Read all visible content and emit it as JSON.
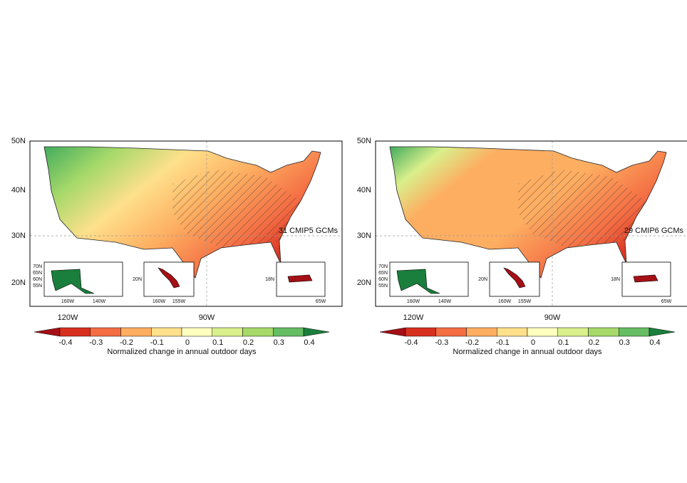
{
  "panels": [
    {
      "annotation": "31 CMIP5 GCMs",
      "lat_labels": [
        "50N",
        "40N",
        "30N",
        "20N"
      ],
      "lon_labels": [
        "120W",
        "90W"
      ],
      "insets": [
        {
          "lat_labels": [
            "70N",
            "65N",
            "60N",
            "55N"
          ],
          "lon_labels": [
            "160W",
            "140W"
          ]
        },
        {
          "lat_labels": [
            "20N"
          ],
          "lon_labels": [
            "160W",
            "155W"
          ]
        },
        {
          "lat_labels": [
            "18N"
          ],
          "lon_labels": [
            "65W"
          ]
        }
      ]
    },
    {
      "annotation": "29 CMIP6 GCMs",
      "lat_labels": [
        "50N",
        "40N",
        "30N",
        "20N"
      ],
      "lon_labels": [
        "120W",
        "90W"
      ],
      "insets": [
        {
          "lat_labels": [
            "70N",
            "65N",
            "60N",
            "55N"
          ],
          "lon_labels": [
            "160W",
            "140W"
          ]
        },
        {
          "lat_labels": [
            "20N"
          ],
          "lon_labels": [
            "160W",
            "155W"
          ]
        },
        {
          "lat_labels": [
            "18N"
          ],
          "lon_labels": [
            "65W"
          ]
        }
      ]
    }
  ],
  "colorbar": {
    "label": "Normalized change in annual outdoor days",
    "ticks": [
      -0.4,
      -0.3,
      -0.2,
      -0.1,
      0,
      0.1,
      0.2,
      0.3,
      0.4
    ],
    "colors": [
      "#a50f15",
      "#d7301f",
      "#f46d43",
      "#fdae61",
      "#fee08b",
      "#ffffbf",
      "#d9ef8b",
      "#a6d96a",
      "#66bd63",
      "#1a7f3c"
    ]
  }
}
